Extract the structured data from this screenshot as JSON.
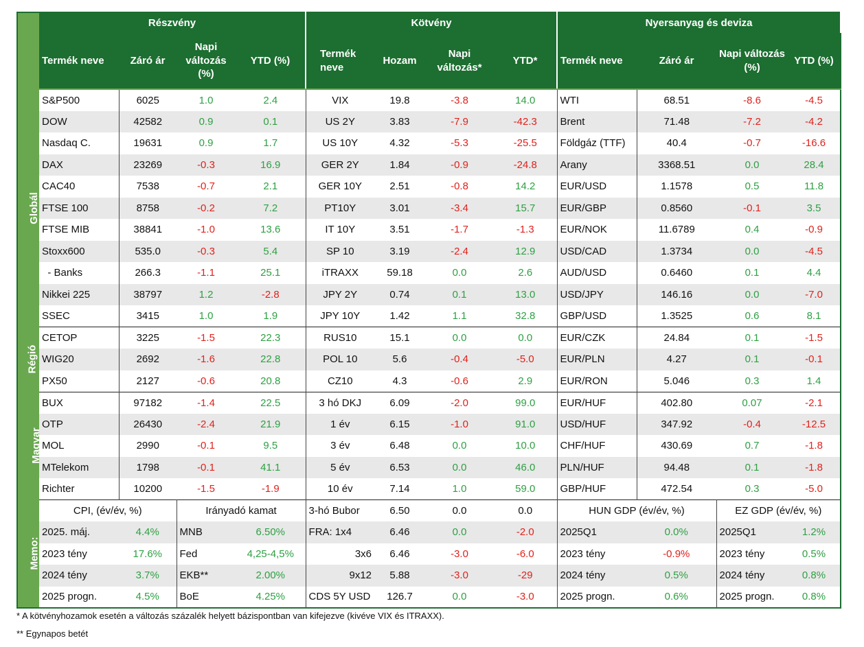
{
  "headers": {
    "sections": [
      "Részvény",
      "Kötvény",
      "Nyersanyag és deviza"
    ],
    "stock": [
      "Termék neve",
      "Záró ár",
      "Napi változás (%)",
      "YTD (%)"
    ],
    "bond": [
      "Termék neve",
      "Hozam",
      "Napi változás*",
      "YTD*"
    ],
    "commodity": [
      "Termék neve",
      "Záró ár",
      "Napi változás (%)",
      "YTD (%)"
    ]
  },
  "groups": [
    "Globál",
    "Régió",
    "Magyar",
    "Memo:"
  ],
  "rows": [
    {
      "group": 0,
      "s": [
        "S&P500",
        "6025",
        "1.0",
        "2.4"
      ],
      "b": [
        "VIX",
        "19.8",
        "-3.8",
        "14.0"
      ],
      "c": [
        "WTI",
        "68.51",
        "-8.6",
        "-4.5"
      ]
    },
    {
      "group": 0,
      "s": [
        "DOW",
        "42582",
        "0.9",
        "0.1"
      ],
      "b": [
        "US 2Y",
        "3.83",
        "-7.9",
        "-42.3"
      ],
      "c": [
        "Brent",
        "71.48",
        "-7.2",
        "-4.2"
      ]
    },
    {
      "group": 0,
      "s": [
        "Nasdaq C.",
        "19631",
        "0.9",
        "1.7"
      ],
      "b": [
        "US 10Y",
        "4.32",
        "-5.3",
        "-25.5"
      ],
      "c": [
        "Földgáz (TTF)",
        "40.4",
        "-0.7",
        "-16.6"
      ]
    },
    {
      "group": 0,
      "s": [
        "DAX",
        "23269",
        "-0.3",
        "16.9"
      ],
      "b": [
        "GER 2Y",
        "1.84",
        "-0.9",
        "-24.8"
      ],
      "c": [
        "Arany",
        "3368.51",
        "0.0",
        "28.4"
      ]
    },
    {
      "group": 0,
      "s": [
        "CAC40",
        "7538",
        "-0.7",
        "2.1"
      ],
      "b": [
        "GER 10Y",
        "2.51",
        "-0.8",
        "14.2"
      ],
      "c": [
        "EUR/USD",
        "1.1578",
        "0.5",
        "11.8"
      ]
    },
    {
      "group": 0,
      "s": [
        "FTSE 100",
        "8758",
        "-0.2",
        "7.2"
      ],
      "b": [
        "PT10Y",
        "3.01",
        "-3.4",
        "15.7"
      ],
      "c": [
        "EUR/GBP",
        "0.8560",
        "-0.1",
        "3.5"
      ]
    },
    {
      "group": 0,
      "s": [
        "FTSE MIB",
        "38841",
        "-1.0",
        "13.6"
      ],
      "b": [
        "IT 10Y",
        "3.51",
        "-1.7",
        "-1.3"
      ],
      "c": [
        "EUR/NOK",
        "11.6789",
        "0.4",
        "-0.9"
      ]
    },
    {
      "group": 0,
      "s": [
        "Stoxx600",
        "535.0",
        "-0.3",
        "5.4"
      ],
      "b": [
        "SP 10",
        "3.19",
        "-2.4",
        "12.9"
      ],
      "c": [
        "USD/CAD",
        "1.3734",
        "0.0",
        "-4.5"
      ]
    },
    {
      "group": 0,
      "s": [
        "  - Banks",
        "266.3",
        "-1.1",
        "25.1"
      ],
      "b": [
        "iTRAXX",
        "59.18",
        "0.0",
        "2.6"
      ],
      "c": [
        "AUD/USD",
        "0.6460",
        "0.1",
        "4.4"
      ]
    },
    {
      "group": 0,
      "s": [
        "Nikkei 225",
        "38797",
        "1.2",
        "-2.8"
      ],
      "b": [
        "JPY 2Y",
        "0.74",
        "0.1",
        "13.0"
      ],
      "c": [
        "USD/JPY",
        "146.16",
        "0.0",
        "-7.0"
      ]
    },
    {
      "group": 0,
      "s": [
        "SSEC",
        "3415",
        "1.0",
        "1.9"
      ],
      "b": [
        "JPY 10Y",
        "1.42",
        "1.1",
        "32.8"
      ],
      "c": [
        "GBP/USD",
        "1.3525",
        "0.6",
        "8.1"
      ]
    },
    {
      "group": 1,
      "s": [
        "CETOP",
        "3225",
        "-1.5",
        "22.3"
      ],
      "b": [
        "RUS10",
        "15.1",
        "0.0",
        "0.0"
      ],
      "c": [
        "EUR/CZK",
        "24.84",
        "0.1",
        "-1.5"
      ]
    },
    {
      "group": 1,
      "s": [
        "WIG20",
        "2692",
        "-1.6",
        "22.8"
      ],
      "b": [
        "POL 10",
        "5.6",
        "-0.4",
        "-5.0"
      ],
      "c": [
        "EUR/PLN",
        "4.27",
        "0.1",
        "-0.1"
      ]
    },
    {
      "group": 1,
      "s": [
        "PX50",
        "2127",
        "-0.6",
        "20.8"
      ],
      "b": [
        "CZ10",
        "4.3",
        "-0.6",
        "2.9"
      ],
      "c": [
        "EUR/RON",
        "5.046",
        "0.3",
        "1.4"
      ]
    },
    {
      "group": 2,
      "s": [
        "BUX",
        "97182",
        "-1.4",
        "22.5"
      ],
      "b": [
        "3 hó DKJ",
        "6.09",
        "-2.0",
        "99.0"
      ],
      "c": [
        "EUR/HUF",
        "402.80",
        "0.07",
        "-2.1"
      ]
    },
    {
      "group": 2,
      "s": [
        "OTP",
        "26430",
        "-2.4",
        "21.9"
      ],
      "b": [
        "1 év",
        "6.15",
        "-1.0",
        "91.0"
      ],
      "c": [
        "USD/HUF",
        "347.92",
        "-0.4",
        "-12.5"
      ]
    },
    {
      "group": 2,
      "s": [
        "MOL",
        "2990",
        "-0.1",
        "9.5"
      ],
      "b": [
        "3 év",
        "6.48",
        "0.0",
        "10.0"
      ],
      "c": [
        "CHF/HUF",
        "430.69",
        "0.7",
        "-1.8"
      ]
    },
    {
      "group": 2,
      "s": [
        "MTelekom",
        "1798",
        "-0.1",
        "41.1"
      ],
      "b": [
        "5 év",
        "6.53",
        "0.0",
        "46.0"
      ],
      "c": [
        "PLN/HUF",
        "94.48",
        "0.1",
        "-1.8"
      ]
    },
    {
      "group": 2,
      "s": [
        "Richter",
        "10200",
        "-1.5",
        "-1.9"
      ],
      "b": [
        "10 év",
        "7.14",
        "1.0",
        "59.0"
      ],
      "c": [
        "GBP/HUF",
        "472.54",
        "0.3",
        "-5.0"
      ]
    }
  ],
  "memo": {
    "cpi_title": "CPI, (év/év, %)",
    "rate_title": "Irányadó kamat",
    "hun_gdp_title": "HUN GDP (év/év, %)",
    "ez_gdp_title": "EZ GDP (év/év, %)",
    "header_bond": [
      "3-hó Bubor",
      "6.50",
      "0.0",
      "0.0"
    ],
    "rows": [
      {
        "cpi": [
          "2025. máj.",
          "4.4%"
        ],
        "rate": [
          "MNB",
          "6.50%"
        ],
        "bond": [
          "FRA:    1x4",
          "6.46",
          "0.0",
          "-2.0"
        ],
        "hun": [
          "2025Q1",
          "0.0%"
        ],
        "ez": [
          "2025Q1",
          "1.2%"
        ]
      },
      {
        "cpi": [
          "2023 tény",
          "17.6%"
        ],
        "rate": [
          "Fed",
          "4,25-4,5%"
        ],
        "bond": [
          "3x6",
          "6.46",
          "-3.0",
          "-6.0"
        ],
        "hun": [
          "2023 tény",
          "-0.9%"
        ],
        "ez": [
          "2023 tény",
          "0.5%"
        ]
      },
      {
        "cpi": [
          "2024 tény",
          "3.7%"
        ],
        "rate": [
          "EKB**",
          "2.00%"
        ],
        "bond": [
          "9x12",
          "5.88",
          "-3.0",
          "-29"
        ],
        "hun": [
          "2024 tény",
          "0.5%"
        ],
        "ez": [
          "2024 tény",
          "0.8%"
        ]
      },
      {
        "cpi": [
          "2025 progn.",
          "4.5%"
        ],
        "rate": [
          "BoE",
          "4.25%"
        ],
        "bond": [
          "CDS 5Y USD",
          "126.7",
          "0.0",
          "-3.0"
        ],
        "hun": [
          "2025 progn.",
          "0.6%"
        ],
        "ez": [
          "2025 progn.",
          "0.8%"
        ]
      }
    ]
  },
  "footnotes": [
    "* A kötvényhozamok esetén a változás százalék helyett bázispontban van kifejezve (kivéve VIX és ITRAXX).",
    "** Egynapos betét"
  ],
  "colors": {
    "header": "#1d6e31",
    "sidebar": "#6aa84f",
    "positive": "#2ea043",
    "negative": "#e0211c",
    "stripe": "#e8e8e8"
  }
}
